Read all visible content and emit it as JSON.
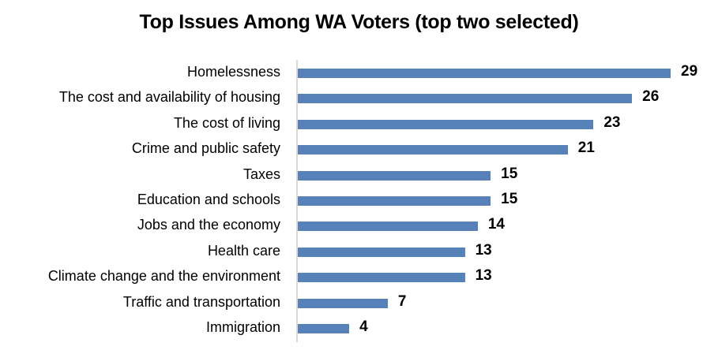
{
  "chart_data": {
    "type": "bar",
    "orientation": "horizontal",
    "title": "Top Issues Among WA Voters (top two selected)",
    "xlabel": "",
    "ylabel": "",
    "categories": [
      "Homelessness",
      "The cost and availability of housing",
      "The cost of living",
      "Crime and public safety",
      "Taxes",
      "Education and schools",
      "Jobs and the economy",
      "Health care",
      "Climate change and the environment",
      "Traffic and transportation",
      "Immigration"
    ],
    "values": [
      29,
      26,
      23,
      21,
      15,
      15,
      14,
      13,
      13,
      7,
      4
    ],
    "xlim": [
      0,
      29
    ],
    "grid": false,
    "legend": "none",
    "data_labels": true,
    "bar_color": "#5681b9"
  }
}
